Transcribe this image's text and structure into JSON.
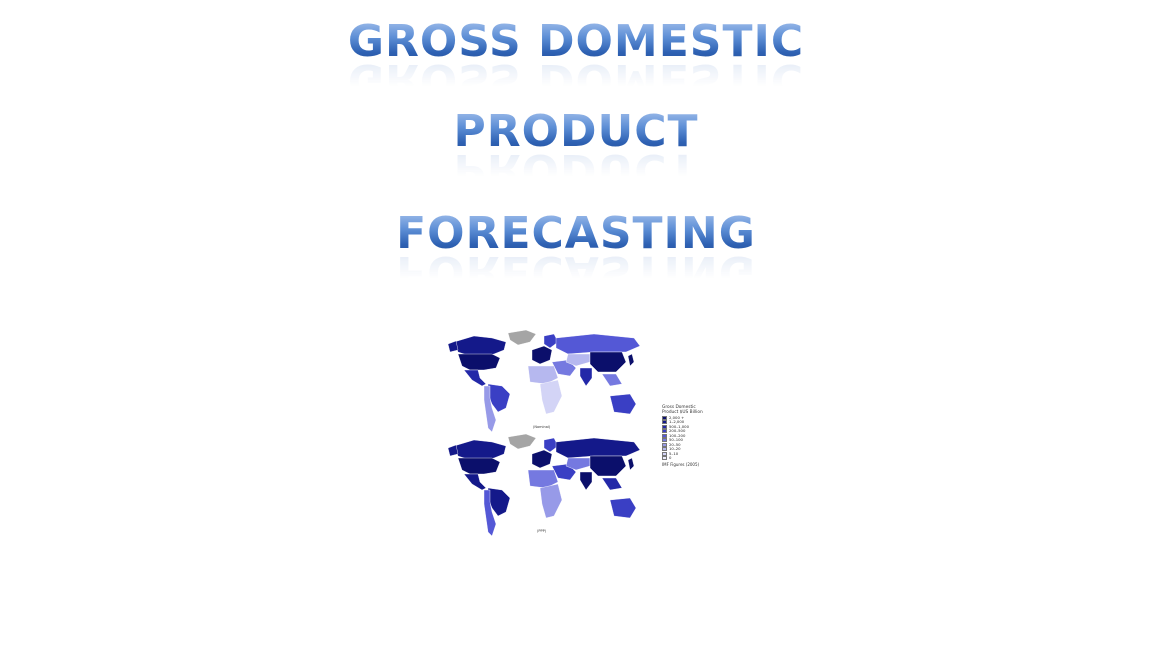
{
  "slide": {
    "title_lines": [
      "GROSS DOMESTIC",
      "PRODUCT",
      "FORECASTING"
    ]
  },
  "figure": {
    "top_map_caption": "(Nominal)",
    "bottom_map_caption": "(PPP)",
    "legend": {
      "title": "Gross Domestic Product $US Billion",
      "items": [
        {
          "label": "2,000 +",
          "color": "#0b0f6b"
        },
        {
          "label": "1–2,000",
          "color": "#14198a"
        },
        {
          "label": "500–1,000",
          "color": "#2328a8"
        },
        {
          "label": "200–500",
          "color": "#3a3fc4"
        },
        {
          "label": "100–200",
          "color": "#5458d6"
        },
        {
          "label": "50–100",
          "color": "#7579e0"
        },
        {
          "label": "20–50",
          "color": "#979ae8"
        },
        {
          "label": "10–20",
          "color": "#b6b8ef"
        },
        {
          "label": "5–10",
          "color": "#d3d4f6"
        },
        {
          "label": "0",
          "color": "#eeeefc"
        }
      ],
      "footnote": "IMF Figures (2005)"
    },
    "no_data_color": "#a5a5a5"
  }
}
